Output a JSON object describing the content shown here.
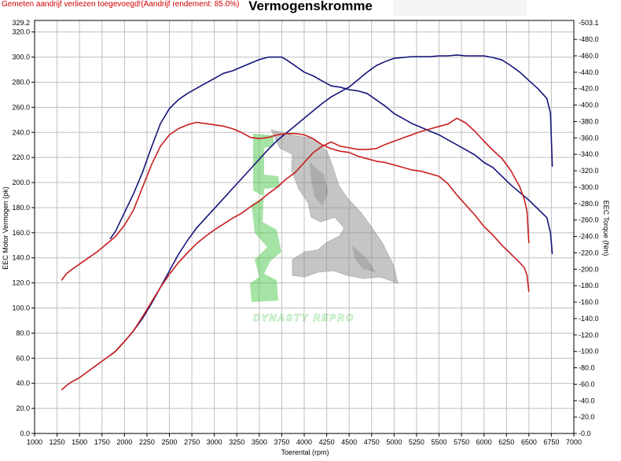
{
  "header": {
    "warning": "Gemeten aandrijf verliezen toegevoegd!(Aandrijf rendement: 85.0%)",
    "title": "Vermogenskromme"
  },
  "watermark": {
    "text": "DYNASTY REPRO"
  },
  "chart_data": {
    "type": "line",
    "title": "Vermogenskromme",
    "xlabel": "Toerental (rpm)",
    "ylabel": "EEC Motor Vermogen (pk)",
    "y2label": "EEC Torque (Nm)",
    "xlim": [
      1000,
      7000
    ],
    "ylim": [
      0,
      329.2
    ],
    "y2lim": [
      0,
      503.1
    ],
    "grid": true,
    "x_ticks": [
      "1000",
      "1250",
      "1500",
      "1750",
      "2000",
      "2250",
      "2500",
      "2750",
      "3000",
      "3250",
      "3500",
      "3750",
      "4000",
      "4250",
      "4500",
      "4750",
      "5000",
      "5250",
      "5500",
      "5750",
      "6000",
      "6250",
      "6500",
      "6750",
      "7000"
    ],
    "y_ticks": [
      "0.0",
      "20.0",
      "40.0",
      "60.0",
      "80.0",
      "100.0",
      "120.0",
      "140.0",
      "160.0",
      "180.0",
      "200.0",
      "220.0",
      "240.0",
      "260.0",
      "280.0",
      "300.0",
      "320.0"
    ],
    "y_top_label": "329.2",
    "y2_ticks": [
      "0.0",
      "20.0",
      "40.0",
      "60.0",
      "80.0",
      "100.0",
      "120.0",
      "140.0",
      "160.0",
      "180.0",
      "200.0",
      "220.0",
      "240.0",
      "260.0",
      "280.0",
      "300.0",
      "320.0",
      "340.0",
      "360.0",
      "380.0",
      "400.0",
      "420.0",
      "440.0",
      "460.0",
      "480.0"
    ],
    "y2_top_label": "503.1",
    "series": [
      {
        "color": "#14147a",
        "axis": "left",
        "role": "power-tuned",
        "x": [
          1840,
          1900,
          2000,
          2100,
          2200,
          2300,
          2400,
          2500,
          2600,
          2700,
          2800,
          2900,
          3000,
          3100,
          3200,
          3300,
          3400,
          3500,
          3600,
          3700,
          3750,
          3800,
          3900,
          4000,
          4100,
          4200,
          4300,
          4400,
          4500,
          4600,
          4700,
          4800,
          4900,
          5000,
          5100,
          5200,
          5300,
          5400,
          5500,
          5600,
          5700,
          5800,
          5900,
          6000,
          6100,
          6200,
          6300,
          6400,
          6500,
          6600,
          6700,
          6740,
          6760
        ],
        "y": [
          155,
          161,
          176,
          191,
          208,
          228,
          247,
          259,
          266,
          271,
          275,
          279,
          283,
          287,
          289,
          292,
          295,
          298,
          300,
          300,
          300,
          298,
          293,
          288,
          285,
          281,
          277,
          276,
          274,
          273,
          271,
          266,
          261,
          255,
          251,
          247,
          244,
          241,
          238,
          234,
          230,
          226,
          222,
          216,
          212,
          205,
          198,
          192,
          186,
          179,
          172,
          160,
          143
        ]
      },
      {
        "color": "#14147a",
        "axis": "right",
        "role": "torque-tuned",
        "x": [
          1840,
          1900,
          2000,
          2100,
          2200,
          2300,
          2400,
          2500,
          2600,
          2700,
          2800,
          2900,
          3000,
          3100,
          3200,
          3300,
          3400,
          3500,
          3600,
          3700,
          3800,
          3900,
          4000,
          4100,
          4200,
          4300,
          4400,
          4500,
          4600,
          4700,
          4800,
          4900,
          5000,
          5100,
          5200,
          5300,
          5400,
          5500,
          5600,
          5700,
          5800,
          5900,
          6000,
          6100,
          6200,
          6300,
          6400,
          6500,
          6600,
          6700,
          6740,
          6760
        ],
        "y": [
          95,
          100,
          112,
          125,
          140,
          158,
          178,
          198,
          218,
          235,
          250,
          262,
          274,
          286,
          298,
          310,
          322,
          334,
          346,
          357,
          366,
          375,
          384,
          393,
          402,
          410,
          416,
          422,
          431,
          440,
          448,
          453,
          457,
          458,
          459,
          459,
          459,
          460,
          460,
          461,
          460,
          460,
          460,
          458,
          455,
          448,
          440,
          430,
          420,
          408,
          390,
          325
        ]
      },
      {
        "color": "#c81e1e",
        "axis": "left",
        "role": "power-stock",
        "x": [
          1300,
          1350,
          1400,
          1500,
          1600,
          1700,
          1800,
          1900,
          2000,
          2100,
          2200,
          2300,
          2400,
          2500,
          2600,
          2700,
          2800,
          2900,
          3000,
          3100,
          3200,
          3300,
          3400,
          3500,
          3600,
          3700,
          3800,
          3900,
          4000,
          4100,
          4200,
          4300,
          4400,
          4500,
          4600,
          4700,
          4800,
          4900,
          5000,
          5100,
          5200,
          5300,
          5400,
          5500,
          5600,
          5700,
          5800,
          5900,
          6000,
          6100,
          6200,
          6300,
          6400,
          6450,
          6480,
          6500
        ],
        "y": [
          122,
          127,
          130,
          135,
          140,
          145,
          151,
          157,
          166,
          178,
          196,
          214,
          229,
          238,
          243,
          246,
          248,
          247,
          246,
          245,
          243,
          240,
          236,
          235,
          236,
          238,
          239,
          239,
          238,
          235,
          230,
          227,
          225,
          224,
          221,
          219,
          217,
          216,
          214,
          212,
          210,
          209,
          207,
          205,
          199,
          190,
          182,
          174,
          165,
          158,
          150,
          143,
          136,
          132,
          126,
          113
        ]
      },
      {
        "color": "#c81e1e",
        "axis": "right",
        "role": "torque-stock",
        "x": [
          1300,
          1350,
          1400,
          1500,
          1600,
          1700,
          1800,
          1900,
          2000,
          2100,
          2200,
          2300,
          2400,
          2500,
          2600,
          2700,
          2800,
          2900,
          3000,
          3100,
          3200,
          3300,
          3400,
          3500,
          3600,
          3700,
          3800,
          3900,
          4000,
          4100,
          4200,
          4300,
          4400,
          4500,
          4600,
          4700,
          4800,
          4900,
          5000,
          5100,
          5200,
          5300,
          5400,
          5500,
          5600,
          5700,
          5800,
          5900,
          6000,
          6100,
          6200,
          6300,
          6400,
          6450,
          6480,
          6500
        ],
        "y": [
          53,
          58,
          62,
          68,
          76,
          84,
          92,
          100,
          112,
          125,
          142,
          160,
          178,
          194,
          208,
          220,
          231,
          240,
          248,
          255,
          262,
          268,
          276,
          283,
          292,
          300,
          310,
          318,
          330,
          342,
          350,
          355,
          350,
          348,
          346,
          346,
          347,
          352,
          356,
          360,
          364,
          368,
          371,
          374,
          377,
          384,
          378,
          368,
          356,
          345,
          335,
          320,
          300,
          285,
          270,
          232
        ]
      }
    ]
  }
}
